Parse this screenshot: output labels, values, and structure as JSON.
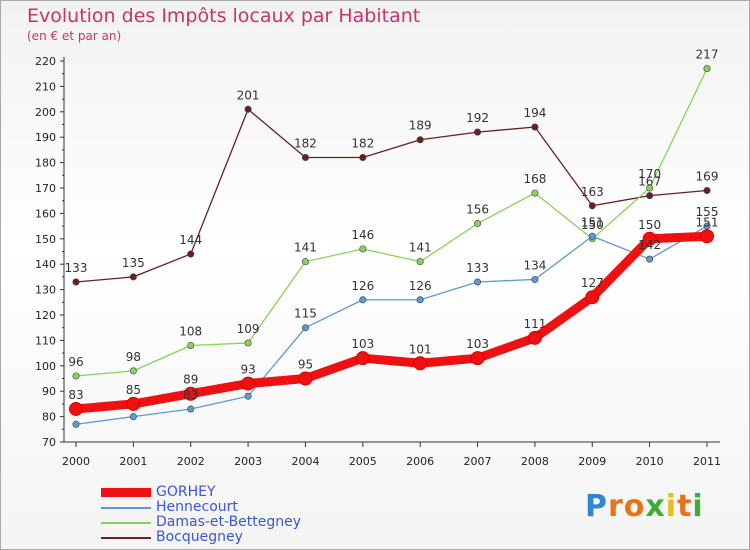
{
  "title": "Evolution des Impôts locaux par Habitant",
  "subtitle": "(en € et par an)",
  "logo": {
    "letters": [
      {
        "char": "P",
        "color": "#2f86d6"
      },
      {
        "char": "r",
        "color": "#e8741a"
      },
      {
        "char": "o",
        "color": "#e8741a"
      },
      {
        "char": "x",
        "color": "#3cae35"
      },
      {
        "char": "i",
        "color": "#e8bc1a"
      },
      {
        "char": "t",
        "color": "#e8741a"
      },
      {
        "char": "i",
        "color": "#3cae35"
      }
    ]
  },
  "chart_data": {
    "type": "line",
    "title": "Evolution des Impôts locaux par Habitant",
    "subtitle": "(en € et par an)",
    "x": [
      2000,
      2001,
      2002,
      2003,
      2004,
      2005,
      2006,
      2007,
      2008,
      2009,
      2010,
      2011
    ],
    "ylim": [
      70,
      220
    ],
    "yticks": [
      70,
      80,
      90,
      100,
      110,
      120,
      130,
      140,
      150,
      160,
      170,
      180,
      190,
      200,
      210,
      220
    ],
    "grid": false,
    "legend_position": "bottom-left",
    "series": [
      {
        "name": "Bocquegney",
        "color": "#6b1f1f",
        "values": [
          133,
          135,
          144,
          201,
          182,
          182,
          189,
          192,
          194,
          163,
          167,
          169
        ]
      },
      {
        "name": "Damas-et-Bettegney",
        "color": "#87d35a",
        "values": [
          96,
          98,
          108,
          109,
          141,
          146,
          141,
          156,
          168,
          150,
          170,
          217
        ]
      },
      {
        "name": "Hennecourt",
        "color": "#5b9bd5",
        "values": [
          77,
          80,
          83,
          88,
          115,
          126,
          126,
          133,
          134,
          151,
          142,
          155
        ]
      },
      {
        "name": "GORHEY",
        "color": "#ee1111",
        "values": [
          83,
          85,
          89,
          93,
          95,
          103,
          101,
          103,
          111,
          127,
          150,
          151
        ]
      }
    ],
    "labels": [
      {
        "series": "Bocquegney",
        "values": [
          "133",
          "135",
          "144",
          "201",
          "182",
          "182",
          "189",
          "192",
          "194",
          "163",
          "167",
          "169"
        ]
      },
      {
        "series": "Damas-et-Bettegney",
        "values": [
          "96",
          "98",
          "108",
          "109",
          "141",
          "146",
          "141",
          "156",
          "168",
          "150",
          "170",
          "217"
        ]
      },
      {
        "series": "Hennecourt",
        "values": [
          "",
          "",
          "83",
          "",
          "115",
          "126",
          "126",
          "133",
          "134",
          "151",
          "142",
          "155"
        ]
      },
      {
        "series": "GORHEY",
        "values": [
          "83",
          "85",
          "89",
          "93",
          "95",
          "103",
          "101",
          "103",
          "111",
          "127",
          "150",
          "151"
        ]
      }
    ]
  },
  "legend": [
    {
      "name": "GORHEY",
      "color": "#ee1111"
    },
    {
      "name": "Hennecourt",
      "color": "#5b9bd5"
    },
    {
      "name": "Damas-et-Bettegney",
      "color": "#87d35a"
    },
    {
      "name": "Bocquegney",
      "color": "#6b1f1f"
    }
  ]
}
